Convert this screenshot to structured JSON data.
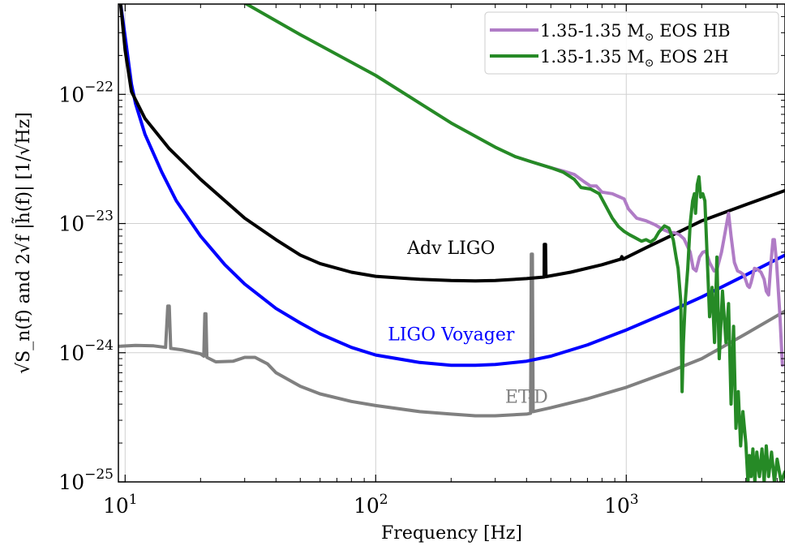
{
  "chart_data": {
    "type": "line",
    "xlabel": "Frequency [Hz]",
    "ylabel": "√S_n(f) and 2√f |h̃(f)| [1/√Hz]",
    "xscale": "log",
    "yscale": "log",
    "xlim": [
      9.4,
      4300
    ],
    "ylim": [
      1e-25,
      5e-22
    ],
    "grid": true,
    "legend_position": "top-right",
    "x_ticks": [
      {
        "value": 10,
        "mantissa": "10",
        "exp": "1"
      },
      {
        "value": 100,
        "mantissa": "10",
        "exp": "2"
      },
      {
        "value": 1000,
        "mantissa": "10",
        "exp": "3"
      }
    ],
    "y_ticks": [
      {
        "value": 1e-25,
        "mantissa": "10",
        "exp": "−25"
      },
      {
        "value": 1e-24,
        "mantissa": "10",
        "exp": "−24"
      },
      {
        "value": 1e-23,
        "mantissa": "10",
        "exp": "−23"
      },
      {
        "value": 1e-22,
        "mantissa": "10",
        "exp": "−22"
      }
    ],
    "series": [
      {
        "name": "Adv LIGO",
        "color": "#000000",
        "width": 4,
        "label": "Adv LIGO",
        "label_at": [
          200,
          5.8e-24
        ],
        "points": [
          [
            9.6,
            5e-22
          ],
          [
            10,
            2.2e-22
          ],
          [
            10.6,
            1.05e-22
          ],
          [
            12,
            6.5e-23
          ],
          [
            15,
            3.8e-23
          ],
          [
            20,
            2.2e-23
          ],
          [
            30,
            1.1e-23
          ],
          [
            40,
            7.5e-24
          ],
          [
            50,
            5.7e-24
          ],
          [
            60,
            4.9e-24
          ],
          [
            80,
            4.2e-24
          ],
          [
            100,
            3.9e-24
          ],
          [
            150,
            3.7e-24
          ],
          [
            200,
            3.62e-24
          ],
          [
            250,
            3.6e-24
          ],
          [
            300,
            3.62e-24
          ],
          [
            400,
            3.75e-24
          ],
          [
            470,
            3.85e-24
          ],
          [
            471,
            6.9e-24
          ],
          [
            476,
            6.9e-24
          ],
          [
            478,
            3.88e-24
          ],
          [
            600,
            4.2e-24
          ],
          [
            800,
            4.8e-24
          ],
          [
            950,
            5.3e-24
          ],
          [
            960,
            5.55e-24
          ],
          [
            970,
            5.3e-24
          ],
          [
            1200,
            6.5e-24
          ],
          [
            1600,
            8.5e-24
          ],
          [
            2000,
            1.05e-23
          ],
          [
            3000,
            1.4e-23
          ],
          [
            4300,
            1.8e-23
          ]
        ]
      },
      {
        "name": "LIGO Voyager",
        "color": "#0000ff",
        "width": 4,
        "label": "LIGO Voyager",
        "label_at": [
          200,
          1.25e-24
        ],
        "points": [
          [
            9.6,
            5e-22
          ],
          [
            10,
            2.8e-22
          ],
          [
            10.6,
            1.2e-22
          ],
          [
            11,
            8.5e-23
          ],
          [
            12,
            4.9e-23
          ],
          [
            14,
            2.5e-23
          ],
          [
            16,
            1.5e-23
          ],
          [
            20,
            8e-24
          ],
          [
            25,
            4.8e-24
          ],
          [
            30,
            3.4e-24
          ],
          [
            40,
            2.2e-24
          ],
          [
            50,
            1.7e-24
          ],
          [
            60,
            1.4e-24
          ],
          [
            80,
            1.1e-24
          ],
          [
            100,
            9.6e-25
          ],
          [
            150,
            8.4e-25
          ],
          [
            200,
            8e-25
          ],
          [
            250,
            8e-25
          ],
          [
            300,
            8.1e-25
          ],
          [
            400,
            8.6e-25
          ],
          [
            500,
            9.4e-25
          ],
          [
            700,
            1.15e-24
          ],
          [
            1000,
            1.5e-24
          ],
          [
            1500,
            2.1e-24
          ],
          [
            2000,
            2.7e-24
          ],
          [
            3000,
            4e-24
          ],
          [
            4300,
            5.7e-24
          ]
        ]
      },
      {
        "name": "ET-D",
        "color": "#808080",
        "width": 4,
        "label": "ET-D",
        "label_at": [
          400,
          4.1e-25
        ],
        "points": [
          [
            9.4,
            1.12e-24
          ],
          [
            11,
            1.14e-24
          ],
          [
            13,
            1.13e-24
          ],
          [
            14.5,
            1.1e-24
          ],
          [
            14.8,
            2.3e-24
          ],
          [
            15.0,
            2.3e-24
          ],
          [
            15.2,
            1.08e-24
          ],
          [
            17,
            1.05e-24
          ],
          [
            20,
            9.8e-25
          ],
          [
            20.6,
            9.4e-25
          ],
          [
            20.8,
            2e-24
          ],
          [
            21.0,
            2e-24
          ],
          [
            21.2,
            9.2e-25
          ],
          [
            23,
            8.5e-25
          ],
          [
            27,
            8.6e-25
          ],
          [
            30,
            9.2e-25
          ],
          [
            33,
            9.2e-25
          ],
          [
            37,
            8.2e-25
          ],
          [
            40,
            7e-25
          ],
          [
            50,
            5.5e-25
          ],
          [
            60,
            4.8e-25
          ],
          [
            80,
            4.2e-25
          ],
          [
            100,
            3.9e-25
          ],
          [
            150,
            3.5e-25
          ],
          [
            200,
            3.35e-25
          ],
          [
            250,
            3.25e-25
          ],
          [
            300,
            3.25e-25
          ],
          [
            400,
            3.35e-25
          ],
          [
            415,
            3.4e-25
          ],
          [
            418,
            5.8e-24
          ],
          [
            422,
            5.8e-24
          ],
          [
            425,
            3.5e-25
          ],
          [
            500,
            3.75e-25
          ],
          [
            700,
            4.4e-25
          ],
          [
            1000,
            5.4e-25
          ],
          [
            1500,
            7.2e-25
          ],
          [
            2000,
            9e-25
          ],
          [
            3000,
            1.4e-24
          ],
          [
            4300,
            2.1e-24
          ]
        ]
      },
      {
        "name": "1.35-1.35 M⊙ EOS HB",
        "color": "#b07cc6",
        "width": 4,
        "points": [
          [
            360,
            3.3e-23
          ],
          [
            420,
            3e-23
          ],
          [
            500,
            2.7e-23
          ],
          [
            560,
            2.55e-23
          ],
          [
            620,
            2.4e-23
          ],
          [
            680,
            2.1e-23
          ],
          [
            720,
            1.95e-23
          ],
          [
            760,
            1.95e-23
          ],
          [
            800,
            1.75e-23
          ],
          [
            880,
            1.7e-23
          ],
          [
            980,
            1.55e-23
          ],
          [
            1020,
            1.3e-23
          ],
          [
            1100,
            1.1e-23
          ],
          [
            1200,
            1.05e-23
          ],
          [
            1300,
            9.8e-24
          ],
          [
            1400,
            9e-24
          ],
          [
            1500,
            8.5e-24
          ],
          [
            1560,
            8.5e-24
          ],
          [
            1630,
            8.2e-24
          ],
          [
            1700,
            7.6e-24
          ],
          [
            1800,
            6e-24
          ],
          [
            1850,
            4.5e-24
          ],
          [
            1900,
            4.3e-24
          ],
          [
            1960,
            5.5e-24
          ],
          [
            2020,
            6e-24
          ],
          [
            2080,
            6.1e-24
          ],
          [
            2150,
            5e-24
          ],
          [
            2240,
            4.3e-24
          ],
          [
            2300,
            4.4e-24
          ],
          [
            2400,
            6e-24
          ],
          [
            2480,
            8.5e-24
          ],
          [
            2560,
            1.2e-23
          ],
          [
            2620,
            8e-24
          ],
          [
            2700,
            5e-24
          ],
          [
            2780,
            4.3e-24
          ],
          [
            2850,
            4.2e-24
          ],
          [
            2950,
            4e-24
          ],
          [
            3050,
            3.3e-24
          ],
          [
            3100,
            3.2e-24
          ],
          [
            3150,
            3.5e-24
          ],
          [
            3250,
            4.5e-24
          ],
          [
            3350,
            4.4e-24
          ],
          [
            3450,
            4.2e-24
          ],
          [
            3550,
            3.7e-24
          ],
          [
            3620,
            3e-24
          ],
          [
            3700,
            2.8e-24
          ],
          [
            3780,
            5e-24
          ],
          [
            3850,
            7.5e-24
          ],
          [
            3900,
            7.5e-24
          ],
          [
            3980,
            5e-24
          ],
          [
            4100,
            2e-24
          ],
          [
            4200,
            8e-25
          ]
        ]
      },
      {
        "name": "1.35-1.35 M⊙ EOS 2H",
        "color": "#268a26",
        "width": 4,
        "points": [
          [
            28,
            5.5e-22
          ],
          [
            50,
            2.9e-22
          ],
          [
            100,
            1.4e-22
          ],
          [
            200,
            6e-23
          ],
          [
            300,
            3.9e-23
          ],
          [
            360,
            3.3e-23
          ],
          [
            420,
            3e-23
          ],
          [
            500,
            2.7e-23
          ],
          [
            560,
            2.5e-23
          ],
          [
            620,
            2.2e-23
          ],
          [
            660,
            1.9e-23
          ],
          [
            720,
            1.85e-23
          ],
          [
            780,
            1.7e-23
          ],
          [
            840,
            1.3e-23
          ],
          [
            880,
            1.1e-23
          ],
          [
            930,
            9.5e-24
          ],
          [
            980,
            8.7e-24
          ],
          [
            1030,
            8.2e-24
          ],
          [
            1080,
            7.8e-24
          ],
          [
            1120,
            7.5e-24
          ],
          [
            1150,
            7.3e-24
          ],
          [
            1200,
            7.5e-24
          ],
          [
            1250,
            7.2e-24
          ],
          [
            1300,
            7.6e-24
          ],
          [
            1350,
            8.6e-24
          ],
          [
            1420,
            9.6e-24
          ],
          [
            1480,
            9.2e-24
          ],
          [
            1540,
            7.5e-24
          ],
          [
            1580,
            5.5e-24
          ],
          [
            1610,
            4.5e-24
          ],
          [
            1650,
            2.5e-24
          ],
          [
            1670,
            5e-25
          ],
          [
            1690,
            1.2e-24
          ],
          [
            1720,
            2.5e-24
          ],
          [
            1760,
            4.5e-24
          ],
          [
            1800,
            1e-23
          ],
          [
            1840,
            1.5e-23
          ],
          [
            1870,
            1.7e-23
          ],
          [
            1890,
            1.2e-23
          ],
          [
            1920,
            2e-23
          ],
          [
            1950,
            2.3e-23
          ],
          [
            1980,
            1.6e-23
          ],
          [
            2020,
            1.7e-23
          ],
          [
            2060,
            1.5e-23
          ],
          [
            2100,
            6e-24
          ],
          [
            2150,
            1.9e-24
          ],
          [
            2200,
            3.2e-24
          ],
          [
            2250,
            1.2e-24
          ],
          [
            2300,
            5.5e-24
          ],
          [
            2350,
            9e-25
          ],
          [
            2420,
            3e-24
          ],
          [
            2500,
            1.2e-24
          ],
          [
            2560,
            2.4e-24
          ],
          [
            2620,
            4e-25
          ],
          [
            2680,
            1.6e-24
          ],
          [
            2740,
            2.6e-25
          ],
          [
            2800,
            5e-25
          ],
          [
            2860,
            1.9e-25
          ],
          [
            2920,
            3.5e-25
          ],
          [
            3000,
            2e-25
          ],
          [
            3060,
            1e-25
          ],
          [
            3100,
            1.6e-25
          ],
          [
            3150,
            1.1e-25
          ],
          [
            3200,
            1.8e-25
          ],
          [
            3260,
            1e-25
          ],
          [
            3320,
            1.7e-25
          ],
          [
            3400,
            1.1e-25
          ],
          [
            3480,
            1.8e-25
          ],
          [
            3550,
            1e-25
          ],
          [
            3620,
            1.9e-25
          ],
          [
            3700,
            1.1e-25
          ],
          [
            3800,
            1.7e-25
          ],
          [
            3900,
            1e-25
          ],
          [
            4000,
            1.5e-25
          ],
          [
            4150,
            1e-25
          ],
          [
            4300,
            1.2e-25
          ]
        ]
      }
    ],
    "legend": [
      {
        "label_main": "1.35-1.35 M",
        "label_sub": "⊙",
        "label_tail": " EOS HB",
        "color": "#b07cc6"
      },
      {
        "label_main": "1.35-1.35 M",
        "label_sub": "⊙",
        "label_tail": " EOS 2H",
        "color": "#268a26"
      }
    ]
  }
}
